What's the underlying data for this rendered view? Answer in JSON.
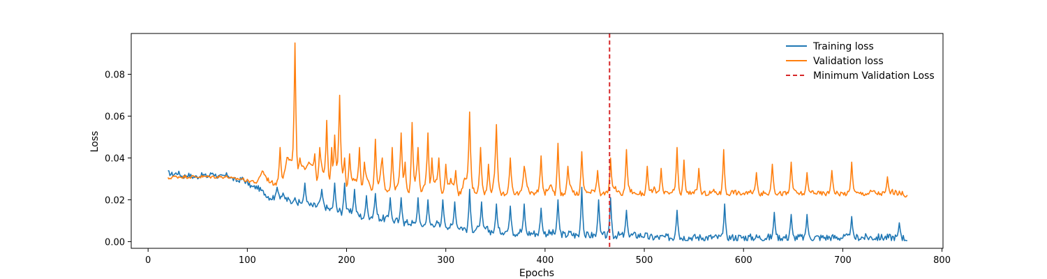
{
  "chart_data": {
    "type": "line",
    "xlabel": "Epochs",
    "ylabel": "Loss",
    "xlim": [
      -17,
      801
    ],
    "ylim": [
      -0.0032,
      0.0995
    ],
    "xticks": [
      0,
      100,
      200,
      300,
      400,
      500,
      600,
      700,
      800
    ],
    "yticks": [
      0.0,
      0.02,
      0.04,
      0.06,
      0.08
    ],
    "ytick_labels": [
      "0.00",
      "0.02",
      "0.04",
      "0.06",
      "0.08"
    ],
    "grid": false,
    "legend_position": "top-right",
    "colors": {
      "training": "#1f77b4",
      "validation": "#ff7f0e",
      "min_line": "#d62728"
    },
    "series": [
      {
        "name": "Training loss",
        "color": "#1f77b4",
        "x_start": 20,
        "x_step": 5,
        "values": [
          0.033,
          0.032,
          0.033,
          0.031,
          0.032,
          0.031,
          0.031,
          0.032,
          0.031,
          0.033,
          0.031,
          0.031,
          0.032,
          0.03,
          0.029,
          0.03,
          0.028,
          0.026,
          0.026,
          0.024,
          0.022,
          0.021,
          0.022,
          0.022,
          0.02,
          0.019,
          0.018,
          0.019,
          0.018,
          0.017,
          0.017,
          0.019,
          0.016,
          0.015,
          0.015,
          0.014,
          0.014,
          0.014,
          0.013,
          0.012,
          0.011,
          0.012,
          0.012,
          0.011,
          0.011,
          0.01,
          0.01,
          0.009,
          0.009,
          0.009,
          0.008,
          0.008,
          0.008,
          0.008,
          0.009,
          0.007,
          0.008,
          0.007,
          0.007,
          0.007,
          0.006,
          0.006,
          0.006,
          0.006,
          0.006,
          0.005,
          0.005,
          0.005,
          0.005,
          0.005,
          0.004,
          0.005,
          0.004,
          0.004,
          0.004,
          0.004,
          0.004,
          0.004,
          0.004,
          0.004,
          0.003,
          0.004,
          0.003,
          0.003,
          0.003,
          0.003,
          0.003,
          0.003,
          0.003,
          0.003,
          0.003,
          0.003,
          0.003,
          0.003,
          0.003,
          0.003,
          0.003,
          0.002,
          0.002,
          0.002,
          0.002,
          0.002,
          0.002,
          0.002,
          0.002,
          0.002,
          0.002,
          0.002,
          0.002,
          0.002,
          0.002,
          0.002,
          0.002,
          0.002,
          0.002,
          0.002,
          0.002,
          0.002,
          0.002,
          0.002,
          0.002,
          0.002,
          0.002,
          0.002,
          0.002,
          0.002,
          0.002,
          0.002,
          0.002,
          0.002,
          0.002,
          0.002,
          0.002,
          0.002,
          0.002,
          0.002,
          0.002,
          0.002,
          0.002,
          0.002,
          0.002,
          0.002,
          0.002,
          0.002,
          0.002,
          0.002,
          0.002,
          0.002,
          0.002,
          0.001
        ]
      },
      {
        "name": "Validation loss",
        "color": "#ff7f0e",
        "x_start": 20,
        "x_step": 5,
        "values": [
          0.03,
          0.031,
          0.031,
          0.031,
          0.031,
          0.031,
          0.031,
          0.031,
          0.031,
          0.031,
          0.031,
          0.031,
          0.031,
          0.03,
          0.03,
          0.03,
          0.029,
          0.029,
          0.028,
          0.034,
          0.03,
          0.028,
          0.028,
          0.029,
          0.04,
          0.038,
          0.034,
          0.035,
          0.036,
          0.037,
          0.028,
          0.035,
          0.03,
          0.026,
          0.034,
          0.033,
          0.025,
          0.029,
          0.03,
          0.025,
          0.03,
          0.025,
          0.025,
          0.033,
          0.024,
          0.024,
          0.026,
          0.031,
          0.024,
          0.024,
          0.03,
          0.024,
          0.029,
          0.024,
          0.029,
          0.024,
          0.023,
          0.03,
          0.023,
          0.023,
          0.031,
          0.028,
          0.023,
          0.026,
          0.023,
          0.023,
          0.031,
          0.023,
          0.023,
          0.026,
          0.023,
          0.023,
          0.03,
          0.023,
          0.023,
          0.025,
          0.023,
          0.027,
          0.023,
          0.023,
          0.023,
          0.026,
          0.023,
          0.023,
          0.025,
          0.023,
          0.025,
          0.023,
          0.023,
          0.023,
          0.026,
          0.023,
          0.023,
          0.025,
          0.023,
          0.023,
          0.023,
          0.023,
          0.025,
          0.023,
          0.023,
          0.023,
          0.024,
          0.023,
          0.023,
          0.023,
          0.024,
          0.023,
          0.023,
          0.023,
          0.024,
          0.023,
          0.023,
          0.023,
          0.024,
          0.023,
          0.023,
          0.023,
          0.024,
          0.023,
          0.023,
          0.023,
          0.024,
          0.023,
          0.023,
          0.023,
          0.024,
          0.023,
          0.023,
          0.023,
          0.024,
          0.023,
          0.023,
          0.023,
          0.024,
          0.023,
          0.023,
          0.023,
          0.024,
          0.023,
          0.023,
          0.023,
          0.024,
          0.023,
          0.023,
          0.023,
          0.024,
          0.023,
          0.023,
          0.022
        ]
      }
    ],
    "spikes": {
      "Validation loss": [
        [
          133,
          0.045
        ],
        [
          148,
          0.095
        ],
        [
          153,
          0.04
        ],
        [
          162,
          0.038
        ],
        [
          168,
          0.042
        ],
        [
          173,
          0.045
        ],
        [
          180,
          0.058
        ],
        [
          185,
          0.045
        ],
        [
          188,
          0.051
        ],
        [
          193,
          0.07
        ],
        [
          198,
          0.04
        ],
        [
          203,
          0.042
        ],
        [
          213,
          0.045
        ],
        [
          218,
          0.038
        ],
        [
          229,
          0.049
        ],
        [
          236,
          0.04
        ],
        [
          246,
          0.045
        ],
        [
          255,
          0.052
        ],
        [
          259,
          0.038
        ],
        [
          266,
          0.057
        ],
        [
          272,
          0.045
        ],
        [
          282,
          0.052
        ],
        [
          286,
          0.04
        ],
        [
          293,
          0.04
        ],
        [
          300,
          0.037
        ],
        [
          310,
          0.034
        ],
        [
          324,
          0.062
        ],
        [
          335,
          0.045
        ],
        [
          343,
          0.037
        ],
        [
          351,
          0.056
        ],
        [
          365,
          0.04
        ],
        [
          379,
          0.036
        ],
        [
          396,
          0.041
        ],
        [
          413,
          0.047
        ],
        [
          423,
          0.036
        ],
        [
          437,
          0.043
        ],
        [
          453,
          0.034
        ],
        [
          466,
          0.04
        ],
        [
          482,
          0.044
        ],
        [
          503,
          0.036
        ],
        [
          517,
          0.035
        ],
        [
          533,
          0.045
        ],
        [
          540,
          0.039
        ],
        [
          555,
          0.035
        ],
        [
          580,
          0.044
        ],
        [
          613,
          0.033
        ],
        [
          629,
          0.037
        ],
        [
          648,
          0.038
        ],
        [
          664,
          0.033
        ],
        [
          689,
          0.034
        ],
        [
          709,
          0.038
        ],
        [
          745,
          0.031
        ]
      ],
      "Training loss": [
        [
          130,
          0.026
        ],
        [
          148,
          0.021
        ],
        [
          158,
          0.028
        ],
        [
          175,
          0.025
        ],
        [
          188,
          0.028
        ],
        [
          198,
          0.028
        ],
        [
          208,
          0.025
        ],
        [
          220,
          0.022
        ],
        [
          229,
          0.023
        ],
        [
          244,
          0.021
        ],
        [
          255,
          0.021
        ],
        [
          272,
          0.021
        ],
        [
          282,
          0.02
        ],
        [
          297,
          0.02
        ],
        [
          309,
          0.019
        ],
        [
          324,
          0.025
        ],
        [
          336,
          0.019
        ],
        [
          351,
          0.018
        ],
        [
          365,
          0.017
        ],
        [
          379,
          0.018
        ],
        [
          396,
          0.016
        ],
        [
          413,
          0.02
        ],
        [
          437,
          0.026
        ],
        [
          454,
          0.02
        ],
        [
          466,
          0.021
        ],
        [
          482,
          0.015
        ],
        [
          533,
          0.015
        ],
        [
          581,
          0.018
        ],
        [
          631,
          0.014
        ],
        [
          648,
          0.013
        ],
        [
          664,
          0.013
        ],
        [
          709,
          0.012
        ],
        [
          757,
          0.009
        ]
      ]
    },
    "vline": {
      "name": "Minimum Validation Loss",
      "x": 465,
      "color": "#d62728"
    }
  }
}
